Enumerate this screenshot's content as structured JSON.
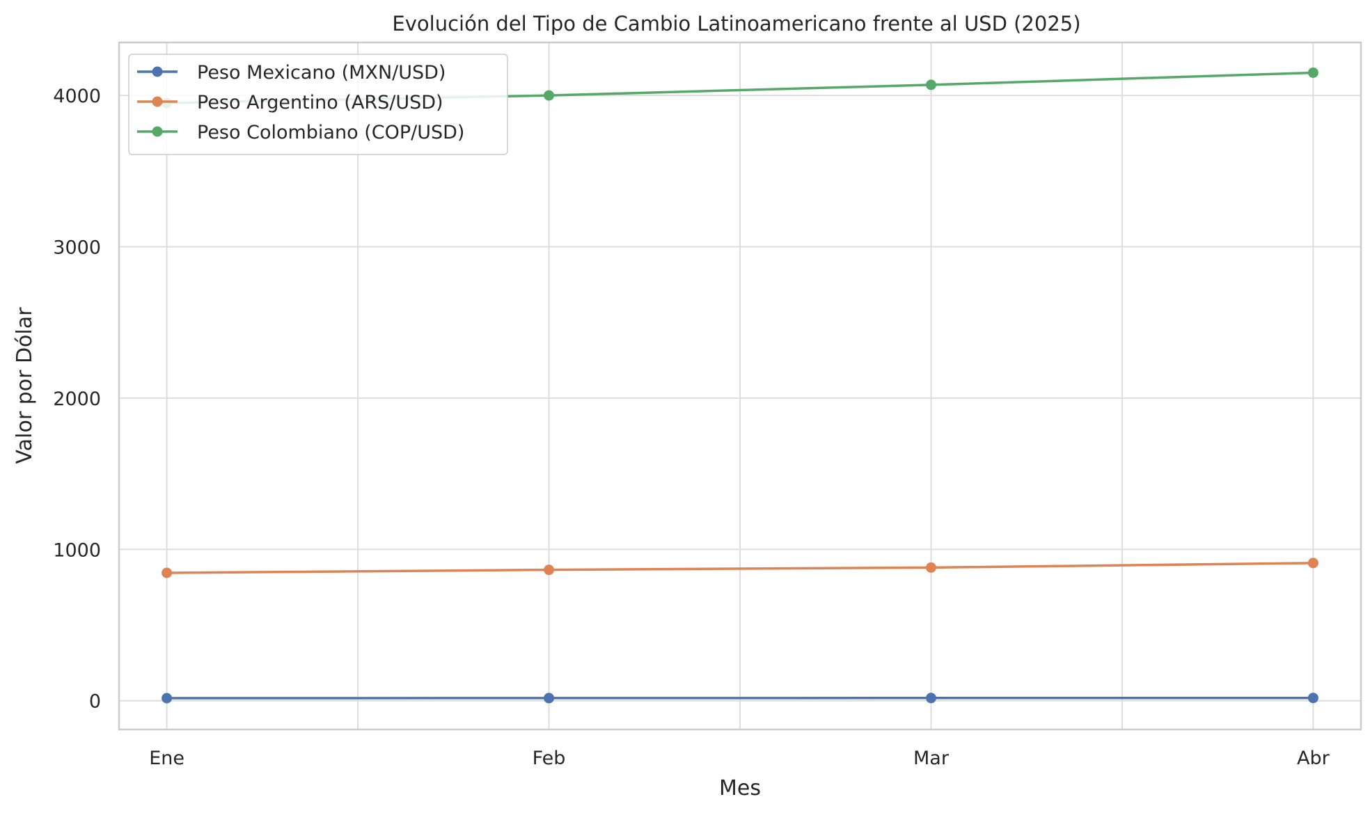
{
  "chart_data": {
    "type": "line",
    "title": "Evolución del Tipo de Cambio Latinoamericano frente al USD (2025)",
    "xlabel": "Mes",
    "ylabel": "Valor por Dólar",
    "categories": [
      "Ene",
      "Feb",
      "Mar",
      "Abr"
    ],
    "xlim": [
      -0.125,
      3.125
    ],
    "ylim": [
      -190,
      4350
    ],
    "yticks": [
      0,
      1000,
      2000,
      3000,
      4000
    ],
    "grid": true,
    "legend_position": "upper-left",
    "series": [
      {
        "name": "Peso Mexicano (MXN/USD)",
        "color": "#4c72b0",
        "values": [
          17.0,
          17.5,
          18.0,
          18.2
        ]
      },
      {
        "name": "Peso Argentino (ARS/USD)",
        "color": "#dd8452",
        "values": [
          845,
          865,
          880,
          910
        ]
      },
      {
        "name": "Peso Colombiano (COP/USD)",
        "color": "#55a868",
        "values": [
          3950,
          4000,
          4070,
          4150
        ]
      }
    ]
  }
}
